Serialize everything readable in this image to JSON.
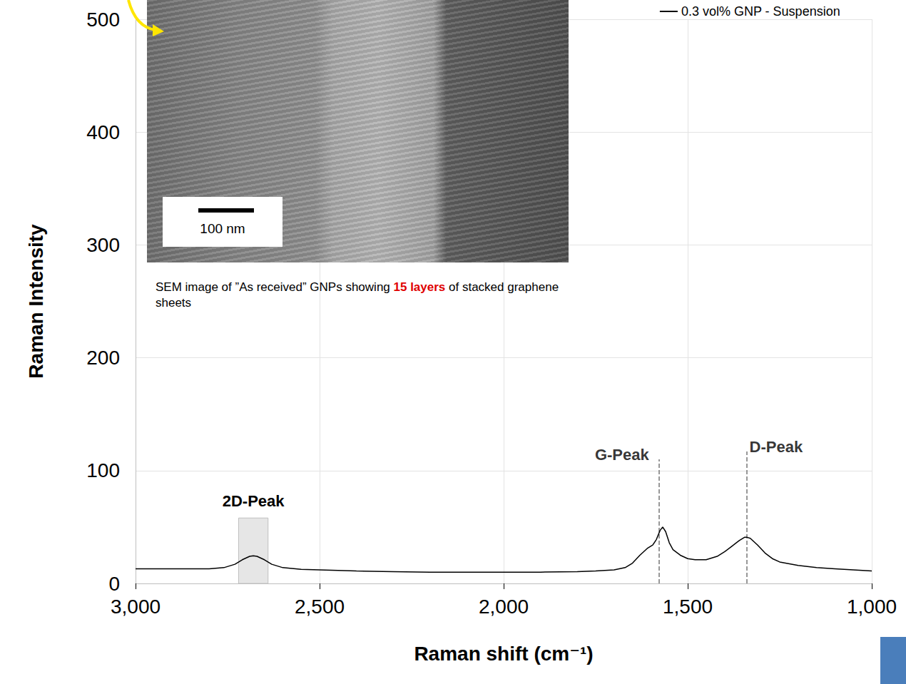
{
  "chart_data": {
    "type": "line",
    "xlabel": "Raman shift (cm⁻¹)",
    "ylabel": "Raman Intensity",
    "x": [
      3000,
      2900,
      2800,
      2760,
      2730,
      2710,
      2690,
      2680,
      2670,
      2650,
      2630,
      2600,
      2550,
      2500,
      2400,
      2300,
      2200,
      2100,
      2000,
      1900,
      1800,
      1750,
      1700,
      1670,
      1650,
      1630,
      1610,
      1595,
      1585,
      1575,
      1568,
      1560,
      1550,
      1540,
      1520,
      1500,
      1480,
      1450,
      1420,
      1400,
      1380,
      1360,
      1345,
      1340,
      1330,
      1310,
      1290,
      1270,
      1250,
      1200,
      1150,
      1100,
      1050,
      1000
    ],
    "series": [
      {
        "name": "0.3 vol% GNP - Suspension",
        "color": "#000000",
        "values": [
          13,
          13,
          13,
          14,
          17,
          21,
          24,
          24.5,
          24,
          21,
          17,
          14,
          12.5,
          12,
          11,
          10.5,
          10,
          10,
          10,
          10,
          10.5,
          11,
          12,
          14,
          18,
          25,
          31,
          34,
          39,
          47,
          50,
          46,
          36,
          30,
          25,
          22,
          21,
          21,
          24,
          28,
          33,
          38,
          41,
          41,
          40,
          34,
          27,
          22,
          19,
          16,
          14,
          13,
          12,
          11
        ]
      }
    ],
    "xlim": [
      3000,
      1000
    ],
    "xticks": [
      3000,
      2500,
      2000,
      1500,
      1000
    ],
    "ylim": [
      0,
      500
    ],
    "yticks": [
      0,
      100,
      200,
      300,
      400,
      500
    ],
    "grid": true,
    "legend": "upper right",
    "annotations": [
      {
        "text": "2D-Peak",
        "x_range": [
          2720,
          2640
        ],
        "y_range": [
          0,
          58
        ]
      },
      {
        "text": "G-Peak",
        "x": 1578,
        "y_range": [
          0,
          110
        ]
      },
      {
        "text": "D-Peak",
        "x": 1340,
        "y_range": [
          0,
          117
        ]
      }
    ],
    "inset": {
      "scale_bar": "100 nm",
      "caption": "SEM image of ”As received” GNPs showing 15 layers of stacked graphene sheets",
      "highlight": "15 layers"
    }
  }
}
